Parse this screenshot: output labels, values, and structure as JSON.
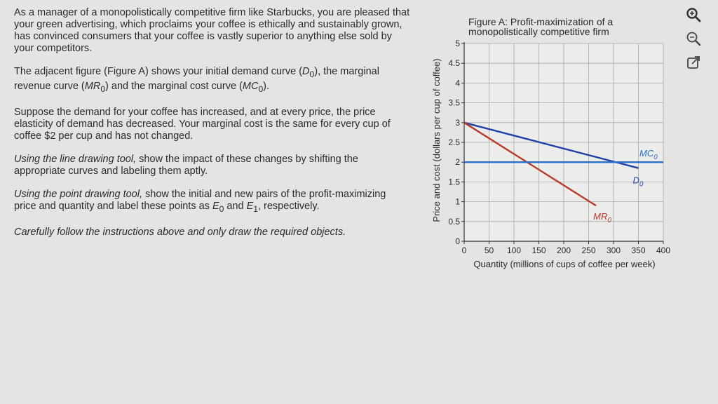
{
  "instructions": {
    "p1": "As a manager of a monopolistically competitive firm like Starbucks, you are pleased that your green advertising, which proclaims your coffee is ethically and sustainably grown, has convinced consumers that your coffee is vastly superior to anything else sold by your competitors.",
    "p2_pre": "The adjacent figure (Figure A) shows your initial demand curve (",
    "p2_d": "D",
    "p2_mid1": "), the marginal revenue curve (",
    "p2_mr": "MR",
    "p2_mid2": ") and the marginal cost curve (",
    "p2_mc": "MC",
    "p2_end": ").",
    "sub0": "0",
    "sub1": "1",
    "p3": "Suppose the demand for your coffee has increased, and at every price, the price elasticity of demand has decreased. Your marginal cost is the same for every cup of coffee $2 per cup and has not changed.",
    "p4_em": "Using the line drawing tool,",
    "p4_rest": " show the impact of these changes by shifting the appropriate curves and labeling them aptly.",
    "p5_em": "Using the point drawing tool,",
    "p5_mid": " show the initial and new pairs of the profit-maximizing price and quantity and label these points as ",
    "p5_e": "E",
    "p5_and": " and ",
    "p5_end": ", respectively.",
    "p6": "Carefully follow the instructions above and only draw the required objects."
  },
  "figure": {
    "title_line1": "Figure A: Profit-maximization of a",
    "title_line2": "monopolistically competitive firm"
  },
  "tools": {
    "zoom_in": "zoom-in-icon",
    "zoom_out": "zoom-out-icon",
    "expand": "open-external-icon"
  },
  "chart_data": {
    "type": "line",
    "xlabel": "Quantity (millions of cups of coffee per week)",
    "ylabel": "Price and cost (dollars per cup of coffee)",
    "xlim": [
      0,
      400
    ],
    "ylim": [
      0,
      5
    ],
    "xticks": [
      0,
      50,
      100,
      150,
      200,
      250,
      300,
      350,
      400
    ],
    "yticks": [
      0,
      0.5,
      1,
      1.5,
      2,
      2.5,
      3,
      3.5,
      4,
      4.5,
      5
    ],
    "xtick_labels": [
      "0",
      "50",
      "100",
      "150",
      "200",
      "250",
      "300",
      "350",
      "400"
    ],
    "ytick_labels": [
      "0",
      "0.5",
      "1",
      "1.5",
      "2",
      "2.5",
      "3",
      "3.5",
      "4",
      "4.5",
      "5"
    ],
    "grid": true,
    "series": [
      {
        "name": "D",
        "sub": "0",
        "color": "#2040a8",
        "points": [
          [
            0,
            3
          ],
          [
            350,
            1.85
          ]
        ]
      },
      {
        "name": "MR",
        "sub": "0",
        "color": "#b83a2a",
        "points": [
          [
            0,
            3
          ],
          [
            265,
            0.9
          ]
        ]
      },
      {
        "name": "MC",
        "sub": "0",
        "color": "#2a6fc8",
        "points": [
          [
            0,
            2
          ],
          [
            400,
            2
          ]
        ]
      }
    ]
  }
}
